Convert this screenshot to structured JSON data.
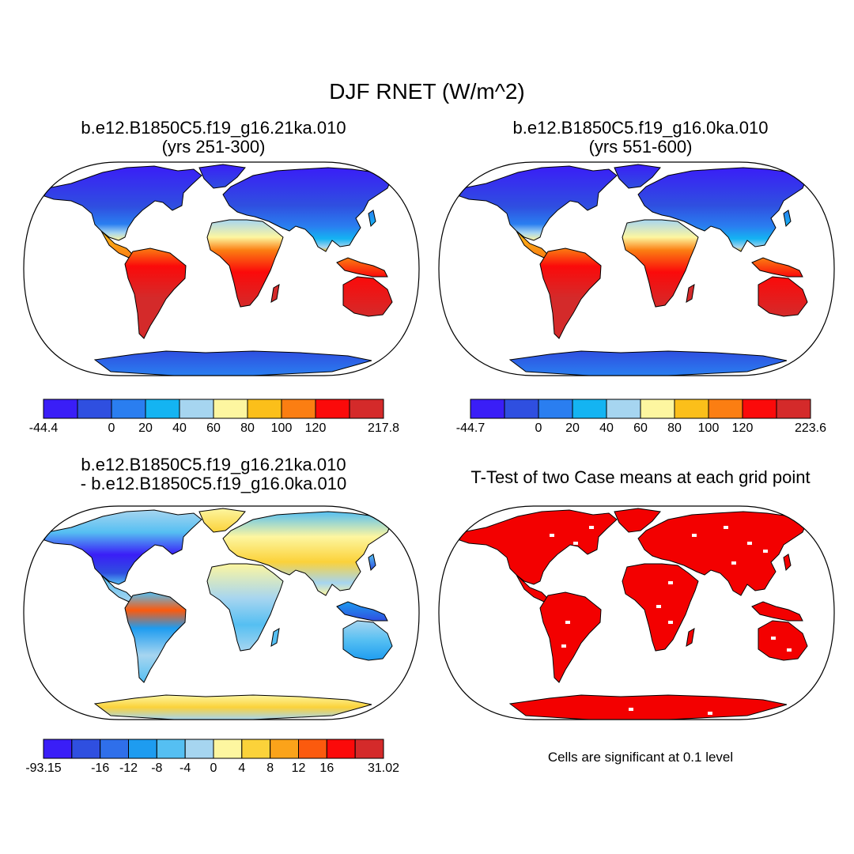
{
  "figure": {
    "title": "DJF RNET (W/m^2)"
  },
  "panels": [
    {
      "title_line1": "b.e12.B1850C5.f19_g16.21ka.010",
      "title_line2": "(yrs 251-300)",
      "colorbar": {
        "colors": [
          "#3a1ef7",
          "#2f4fe0",
          "#2a7ef0",
          "#14b4f2",
          "#a6d5f0",
          "#fdf6a0",
          "#fbbf1a",
          "#fb7e12",
          "#fb0a0a",
          "#d42a2a"
        ],
        "labels": [
          "-44.4",
          "0",
          "20",
          "40",
          "60",
          "80",
          "100",
          "120",
          "217.8"
        ],
        "label_boundaries": [
          0,
          2,
          3,
          4,
          5,
          6,
          7,
          8,
          10
        ]
      }
    },
    {
      "title_line1": "b.e12.B1850C5.f19_g16.0ka.010",
      "title_line2": "(yrs 551-600)",
      "colorbar": {
        "colors": [
          "#3a1ef7",
          "#2f4fe0",
          "#2a7ef0",
          "#14b4f2",
          "#a6d5f0",
          "#fdf6a0",
          "#fbbf1a",
          "#fb7e12",
          "#fb0a0a",
          "#d42a2a"
        ],
        "labels": [
          "-44.7",
          "0",
          "20",
          "40",
          "60",
          "80",
          "100",
          "120",
          "223.6"
        ],
        "label_boundaries": [
          0,
          2,
          3,
          4,
          5,
          6,
          7,
          8,
          10
        ]
      }
    },
    {
      "title_line1": "b.e12.B1850C5.f19_g16.21ka.010",
      "title_line2": "- b.e12.B1850C5.f19_g16.0ka.010",
      "colorbar": {
        "colors": [
          "#3a1ef7",
          "#2f4fe0",
          "#2f6fea",
          "#1e9cf0",
          "#55bff2",
          "#a6d5f0",
          "#fdf6a0",
          "#fbd23a",
          "#fba31a",
          "#fb5a0e",
          "#fb0a0a",
          "#d42a2a"
        ],
        "labels": [
          "-93.15",
          "-16",
          "-12",
          "-8",
          "-4",
          "0",
          "4",
          "8",
          "12",
          "16",
          "31.02"
        ],
        "label_boundaries": [
          0,
          2,
          3,
          4,
          5,
          6,
          7,
          8,
          9,
          10,
          12
        ]
      }
    },
    {
      "title": "T-Test of two Case means at each grid point",
      "note": "Cells are significant at 0.1 level"
    }
  ],
  "map_styles": {
    "significance_color": "#f30000",
    "coastline_color": "#000000"
  }
}
